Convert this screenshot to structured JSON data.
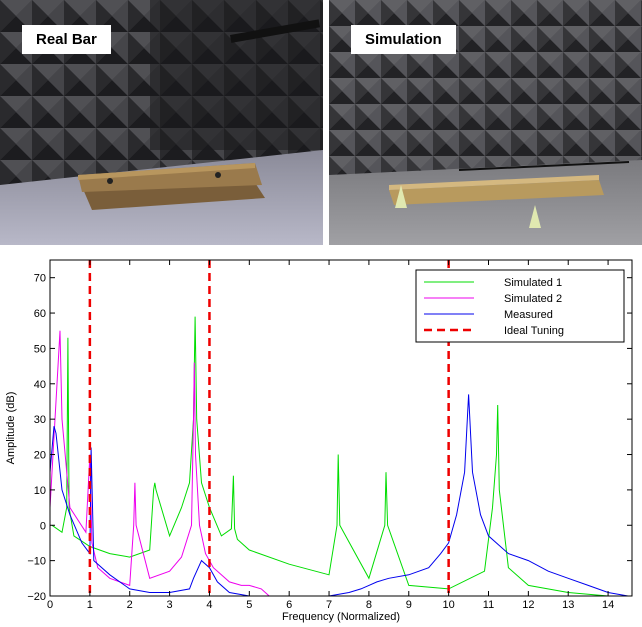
{
  "panels": {
    "left_label": "Real Bar",
    "right_label": "Simulation"
  },
  "chart_data": {
    "type": "line",
    "xlabel": "Frequency (Normalized)",
    "ylabel": "Amplitude (dB)",
    "xlim": [
      0,
      14.6
    ],
    "ylim": [
      -20,
      75
    ],
    "xticks": [
      0,
      1,
      2,
      3,
      4,
      5,
      6,
      7,
      8,
      9,
      10,
      11,
      12,
      13,
      14
    ],
    "yticks": [
      -20,
      -10,
      0,
      10,
      20,
      30,
      40,
      50,
      60,
      70
    ],
    "ytick_labels": [
      "−20",
      "−10",
      "0",
      "10",
      "20",
      "30",
      "40",
      "50",
      "60",
      "70"
    ],
    "grid": false,
    "legend_position": "top-right",
    "ideal_tuning": [
      1,
      4,
      10
    ],
    "series": [
      {
        "name": "Simulated 1",
        "color": "#00dd00",
        "style": "solid",
        "x": [
          0.05,
          0.3,
          0.42,
          0.45,
          0.48,
          0.6,
          1.0,
          1.5,
          2.0,
          2.5,
          2.6,
          2.63,
          2.66,
          3.0,
          3.3,
          3.5,
          3.6,
          3.64,
          3.68,
          3.8,
          4.0,
          4.3,
          4.55,
          4.6,
          4.63,
          4.7,
          5.0,
          6.0,
          7.0,
          7.2,
          7.23,
          7.27,
          8.0,
          8.4,
          8.43,
          8.47,
          9.0,
          10.0,
          10.9,
          11.1,
          11.2,
          11.23,
          11.27,
          11.5,
          12.0,
          13.0,
          14.0,
          14.5
        ],
        "y": [
          0,
          -2,
          5,
          53,
          5,
          -3,
          -6,
          -8,
          -9,
          -7,
          10,
          12,
          10,
          -3,
          5,
          12,
          30,
          59,
          30,
          12,
          5,
          -3,
          -1,
          14,
          -1,
          -4,
          -7,
          -11,
          -14,
          0,
          20,
          0,
          -15,
          0,
          15,
          0,
          -17,
          -18,
          -13,
          5,
          20,
          34,
          10,
          -12,
          -17,
          -19,
          -20,
          -20
        ]
      },
      {
        "name": "Simulated 2",
        "color": "#ee00ee",
        "style": "solid",
        "x": [
          0.0,
          0.1,
          0.2,
          0.25,
          0.3,
          0.5,
          0.9,
          1.0,
          1.05,
          1.2,
          1.5,
          2.0,
          2.1,
          2.13,
          2.16,
          2.5,
          3.0,
          3.3,
          3.55,
          3.6,
          3.62,
          3.65,
          3.75,
          3.9,
          4.1,
          4.5,
          4.8,
          5.0,
          5.3,
          5.5,
          5.6,
          6.0
        ],
        "y": [
          5,
          25,
          45,
          55,
          30,
          5,
          -2,
          20,
          -5,
          -12,
          -15,
          -17,
          0,
          12,
          0,
          -15,
          -13,
          -9,
          0,
          30,
          46,
          20,
          0,
          -8,
          -12,
          -16,
          -17,
          -17,
          -18,
          -20,
          -20,
          -20
        ]
      },
      {
        "name": "Measured",
        "color": "#0000ee",
        "style": "solid",
        "x": [
          0.0,
          0.1,
          0.15,
          0.3,
          0.5,
          0.8,
          1.0,
          1.03,
          1.1,
          1.5,
          2.0,
          2.5,
          3.0,
          3.5,
          3.6,
          3.8,
          4.0,
          4.2,
          4.5,
          5.0,
          5.5,
          6.0,
          7.0,
          7.5,
          7.8,
          8.0,
          8.2,
          8.5,
          9.0,
          9.5,
          9.8,
          10.0,
          10.2,
          10.4,
          10.5,
          10.6,
          10.8,
          11.0,
          11.5,
          12.0,
          12.5,
          13.0,
          13.5,
          14.0,
          14.5
        ],
        "y": [
          15,
          28,
          26,
          10,
          3,
          -5,
          -8,
          22,
          -10,
          -14,
          -18,
          -19,
          -19,
          -18,
          -15,
          -10,
          -12,
          -16,
          -19,
          -20,
          -20,
          -20,
          -20,
          -19,
          -18,
          -17,
          -16,
          -15,
          -14,
          -12,
          -8,
          -5,
          3,
          15,
          37,
          15,
          3,
          -3,
          -8,
          -10,
          -13,
          -15,
          -17,
          -19,
          -20
        ]
      },
      {
        "name": "Ideal Tuning",
        "color": "#ee0000",
        "style": "dashed",
        "x": [],
        "y": []
      }
    ]
  }
}
